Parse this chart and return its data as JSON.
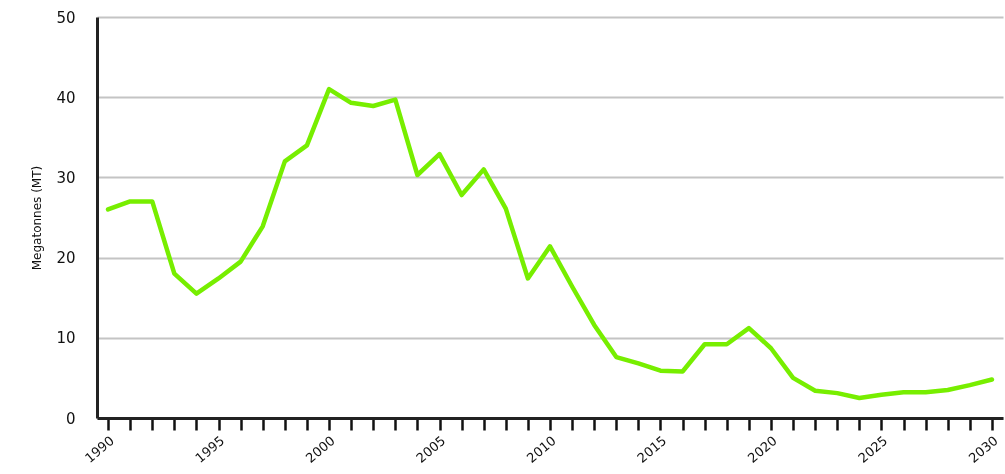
{
  "chart_data": {
    "type": "line",
    "ylabel": "Megatonnes (MT)",
    "x": [
      1990,
      1991,
      1992,
      1993,
      1994,
      1995,
      1996,
      1997,
      1998,
      1999,
      2000,
      2001,
      2002,
      2003,
      2004,
      2005,
      2006,
      2007,
      2008,
      2009,
      2010,
      2011,
      2012,
      2013,
      2014,
      2015,
      2016,
      2017,
      2018,
      2019,
      2020,
      2021,
      2022,
      2023,
      2024,
      2025,
      2026,
      2027,
      2028,
      2029,
      2030
    ],
    "series": [
      {
        "color": "#77ee00",
        "values": [
          26.0,
          27.0,
          27.0,
          18.0,
          15.5,
          17.4,
          19.5,
          23.9,
          32.0,
          34.0,
          41.0,
          39.3,
          38.9,
          39.7,
          30.3,
          32.9,
          27.8,
          31.0,
          26.1,
          17.4,
          21.4,
          16.4,
          11.6,
          7.6,
          6.8,
          5.9,
          5.8,
          9.2,
          9.2,
          11.2,
          8.7,
          5.0,
          3.4,
          3.1,
          2.5,
          2.9,
          3.2,
          3.2,
          3.5,
          4.1,
          4.8
        ]
      }
    ],
    "xlim": [
      1989.5,
      2030.5
    ],
    "xticks": [
      1990,
      {
        "value": 1991,
        "label": null
      },
      {
        "value": 1992,
        "label": null
      },
      {
        "value": 1993,
        "label": null
      },
      {
        "value": 1994,
        "label": null
      },
      1995,
      {
        "value": 1996,
        "label": null
      },
      {
        "value": 1997,
        "label": null
      },
      {
        "value": 1998,
        "label": null
      },
      {
        "value": 1999,
        "label": null
      },
      2000,
      {
        "value": 2001,
        "label": null
      },
      {
        "value": 2002,
        "label": null
      },
      {
        "value": 2003,
        "label": null
      },
      {
        "value": 2004,
        "label": null
      },
      2005,
      {
        "value": 2006,
        "label": null
      },
      {
        "value": 2007,
        "label": null
      },
      {
        "value": 2008,
        "label": null
      },
      {
        "value": 2009,
        "label": null
      },
      2010,
      {
        "value": 2011,
        "label": null
      },
      {
        "value": 2012,
        "label": null
      },
      {
        "value": 2013,
        "label": null
      },
      {
        "value": 2014,
        "label": null
      },
      2015,
      {
        "value": 2016,
        "label": null
      },
      {
        "value": 2017,
        "label": null
      },
      {
        "value": 2018,
        "label": null
      },
      {
        "value": 2019,
        "label": null
      },
      2020,
      {
        "value": 2021,
        "label": null
      },
      {
        "value": 2022,
        "label": null
      },
      {
        "value": 2023,
        "label": null
      },
      {
        "value": 2024,
        "label": null
      },
      2025,
      {
        "value": 2026,
        "label": null
      },
      {
        "value": 2027,
        "label": null
      },
      {
        "value": 2028,
        "label": null
      },
      {
        "value": 2029,
        "label": null
      },
      2030
    ],
    "ylim": [
      0,
      50
    ],
    "yticks": [
      0,
      10,
      20,
      30,
      40,
      50
    ],
    "grid": "y",
    "line_style": "solid"
  }
}
